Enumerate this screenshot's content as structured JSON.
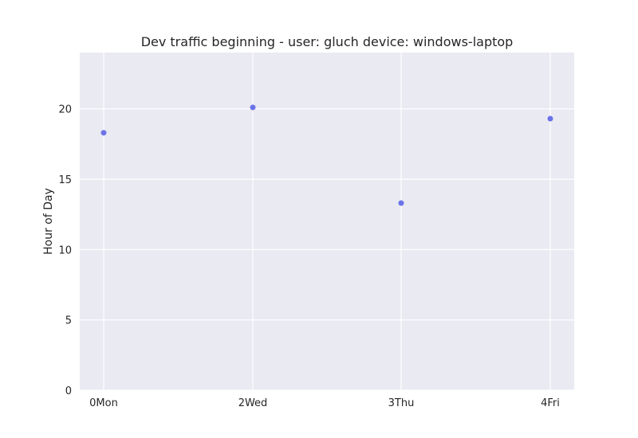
{
  "chart_data": {
    "type": "scatter",
    "title": "Dev traffic beginning - user: gluch device: windows-laptop",
    "xlabel": "",
    "ylabel": "Hour of Day",
    "x_categories": [
      "0Mon",
      "2Wed",
      "3Thu",
      "4Fri"
    ],
    "points": [
      {
        "x": "0Mon",
        "y": 18.3
      },
      {
        "x": "2Wed",
        "y": 20.1
      },
      {
        "x": "3Thu",
        "y": 13.3
      },
      {
        "x": "4Fri",
        "y": 19.3
      }
    ],
    "ylim": [
      0,
      24
    ],
    "yticks": [
      0,
      5,
      10,
      15,
      20
    ],
    "grid": true,
    "colors": {
      "background": "#eaeaf2",
      "grid": "#ffffff",
      "point": "#6b73e8",
      "text": "#262626"
    }
  }
}
